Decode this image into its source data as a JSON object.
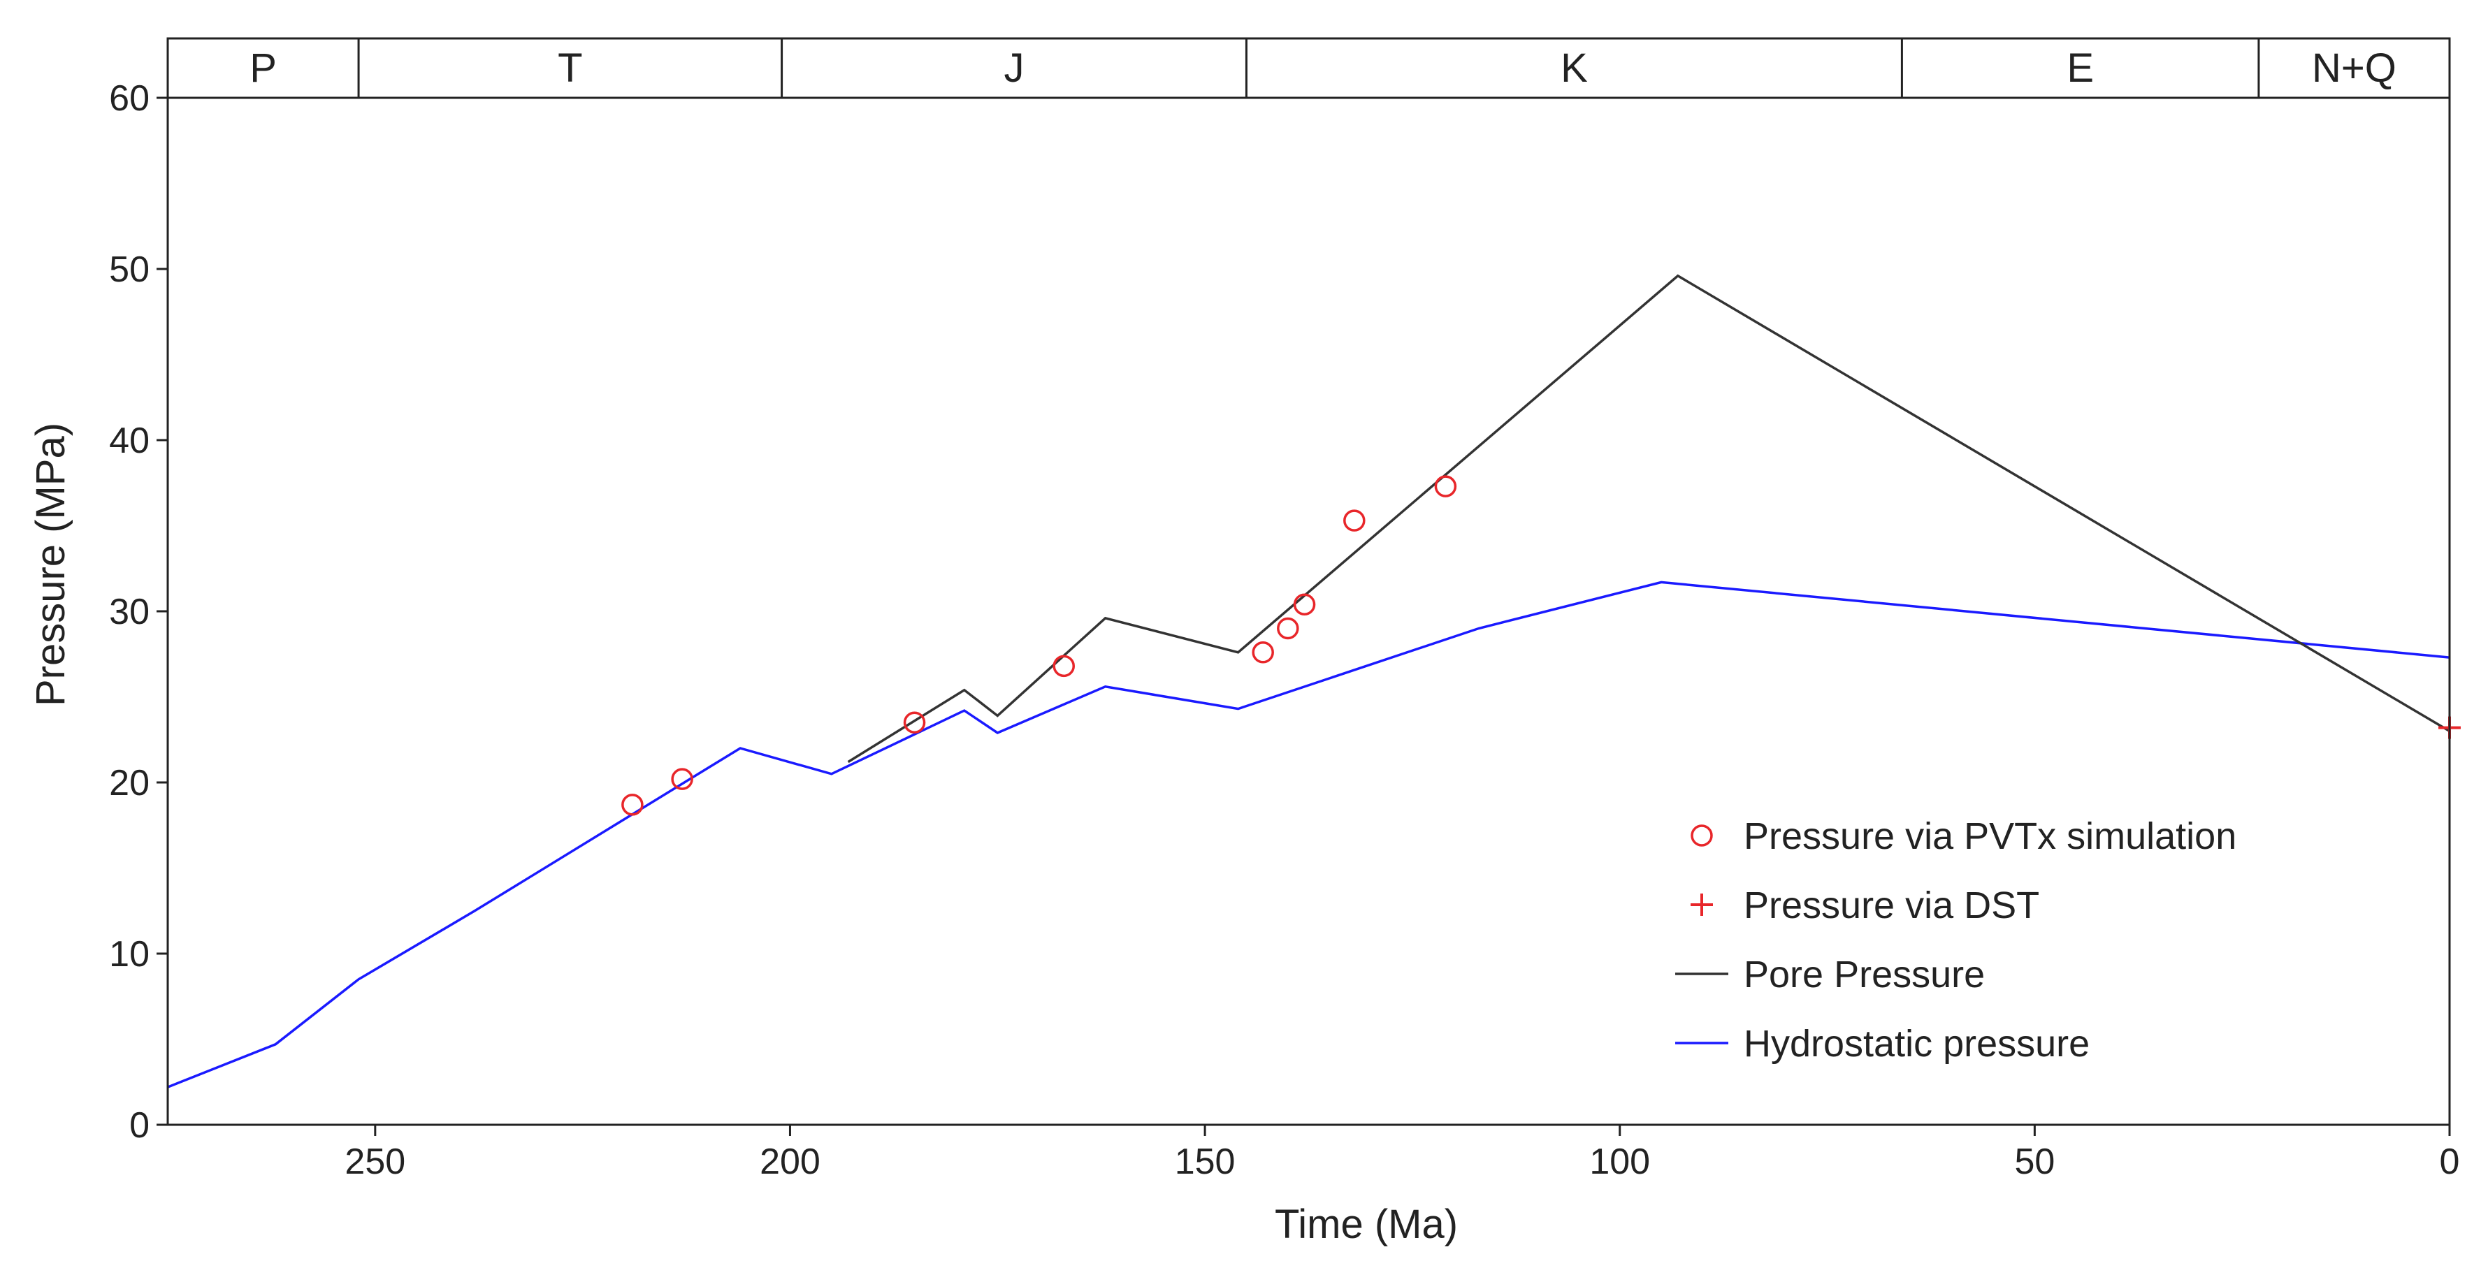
{
  "chart_data": {
    "type": "line",
    "xlabel": "Time (Ma)",
    "ylabel": "Pressure (MPa)",
    "xlim": [
      275,
      0
    ],
    "ylim": [
      0,
      60
    ],
    "x_ticks": [
      250,
      200,
      150,
      100,
      50,
      0
    ],
    "y_ticks": [
      0,
      10,
      20,
      30,
      40,
      50,
      60
    ],
    "grid": false,
    "legend_position": "lower-right",
    "periods": [
      {
        "label": "P",
        "start": 275,
        "end": 252
      },
      {
        "label": "T",
        "start": 252,
        "end": 201
      },
      {
        "label": "J",
        "start": 201,
        "end": 145
      },
      {
        "label": "K",
        "start": 145,
        "end": 66
      },
      {
        "label": "E",
        "start": 66,
        "end": 23
      },
      {
        "label": "N+Q",
        "start": 23,
        "end": 0
      }
    ],
    "series": [
      {
        "name": "Hydrostatic pressure",
        "kind": "line",
        "color": "#1a1aff",
        "x": [
          275,
          262,
          252,
          238,
          206,
          195,
          179,
          175,
          162,
          146,
          117,
          95,
          0
        ],
        "y": [
          2.2,
          4.7,
          8.5,
          12.5,
          22.0,
          20.5,
          24.2,
          22.9,
          25.6,
          24.3,
          29.0,
          31.7,
          27.3
        ]
      },
      {
        "name": "Pore  Pressure",
        "kind": "line",
        "color": "#333333",
        "x": [
          193,
          179,
          175,
          162,
          146,
          93,
          0
        ],
        "y": [
          21.2,
          25.4,
          23.9,
          29.6,
          27.6,
          49.6,
          23.0
        ]
      },
      {
        "name": "Pressure via PVTx simulation",
        "kind": "scatter-circle",
        "color": "#e8262a",
        "x": [
          219,
          213,
          185,
          167,
          143,
          140,
          138,
          132,
          121
        ],
        "y": [
          18.7,
          20.2,
          23.5,
          26.8,
          27.6,
          29.0,
          30.4,
          35.3,
          37.3
        ]
      },
      {
        "name": "Pressure via DST",
        "kind": "scatter-plus",
        "color": "#e8262a",
        "x": [
          0
        ],
        "y": [
          23.2
        ]
      }
    ],
    "legend_order": [
      2,
      3,
      1,
      0
    ]
  }
}
